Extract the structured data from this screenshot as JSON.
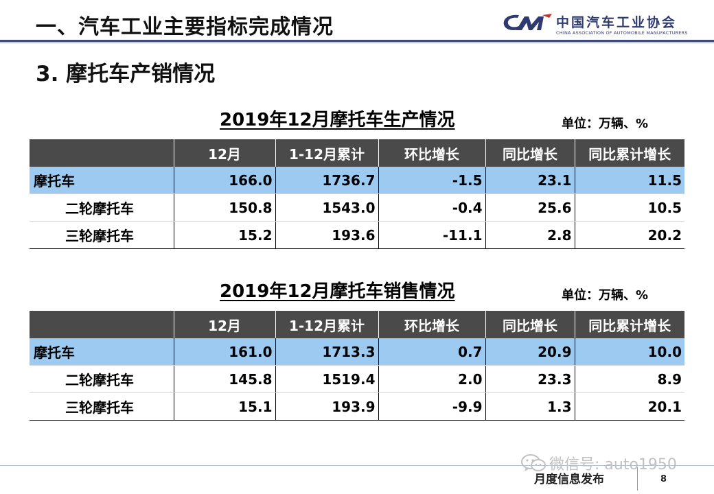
{
  "header": {
    "title": "一、汽车工业主要指标完成情况",
    "logo_cn": "中国汽车工业协会",
    "logo_en": "CHINA ASSOCIATION OF AUTOMOBILE MANUFACTURERS"
  },
  "section_title": "3. 摩托车产销情况",
  "production": {
    "title": "2019年12月摩托车生产情况",
    "unit": "单位：万辆、%",
    "columns": [
      "",
      "12月",
      "1-12月累计",
      "环比增长",
      "同比增长",
      "同比累计增长"
    ],
    "rows": [
      {
        "name": "摩托车",
        "values": [
          "166.0",
          "1736.7",
          "-1.5",
          "23.1",
          "11.5"
        ]
      },
      {
        "name": "二轮摩托车",
        "values": [
          "150.8",
          "1543.0",
          "-0.4",
          "25.6",
          "10.5"
        ]
      },
      {
        "name": "三轮摩托车",
        "values": [
          "15.2",
          "193.6",
          "-11.1",
          "2.8",
          "20.2"
        ]
      }
    ]
  },
  "sales": {
    "title": "2019年12月摩托车销售情况",
    "unit": "单位：万辆、%",
    "columns": [
      "",
      "12月",
      "1-12月累计",
      "环比增长",
      "同比增长",
      "同比累计增长"
    ],
    "rows": [
      {
        "name": "摩托车",
        "values": [
          "161.0",
          "1713.3",
          "0.7",
          "20.9",
          "10.0"
        ]
      },
      {
        "name": "二轮摩托车",
        "values": [
          "145.8",
          "1519.4",
          "2.0",
          "23.3",
          "8.9"
        ]
      },
      {
        "name": "三轮摩托车",
        "values": [
          "15.1",
          "193.9",
          "-9.9",
          "1.3",
          "20.1"
        ]
      }
    ]
  },
  "footer": {
    "label": "月度信息发布",
    "page": "8",
    "watermark": "微信号: auto1950"
  },
  "colors": {
    "header_row": "#4a4a4a",
    "total_row": "#9ccaf0",
    "title_rule": "#3e4a7a",
    "logo": "#2f3b70"
  },
  "icons": [
    "cam-logo-icon",
    "wechat-icon"
  ]
}
